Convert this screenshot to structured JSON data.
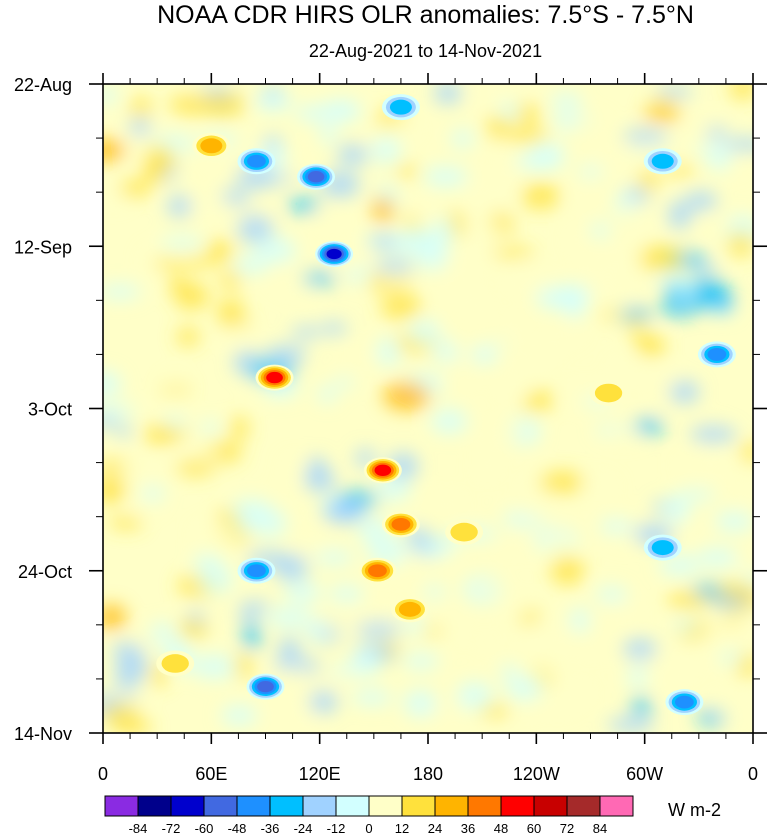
{
  "chart_data": {
    "type": "heatmap",
    "title": "NOAA CDR HIRS OLR anomalies: 7.5°S - 7.5°N",
    "subtitle": "22-Aug-2021 to 14-Nov-2021",
    "x_ticks": [
      "0",
      "60E",
      "120E",
      "180",
      "120W",
      "60W",
      "0"
    ],
    "x_tick_values_deg_east": [
      0,
      60,
      120,
      180,
      240,
      300,
      360
    ],
    "y_ticks": [
      "22-Aug",
      "12-Sep",
      "3-Oct",
      "24-Oct",
      "14-Nov"
    ],
    "y_range": [
      "22-Aug-2021",
      "14-Nov-2021"
    ],
    "colorbar": {
      "labels": [
        "-84",
        "-72",
        "-60",
        "-48",
        "-36",
        "-24",
        "-12",
        "0",
        "12",
        "24",
        "36",
        "48",
        "60",
        "72",
        "84"
      ],
      "colors": [
        "#8a2be2",
        "#00008b",
        "#0000cd",
        "#4169e1",
        "#1e90ff",
        "#00bfff",
        "#a0d2ff",
        "#d2ffff",
        "#ffffc8",
        "#ffe13c",
        "#ffb400",
        "#ff7800",
        "#ff0000",
        "#c80000",
        "#a52a2a",
        "#ff69b4"
      ],
      "units": "W m-2"
    },
    "features": [
      {
        "lon": 85,
        "day": 10,
        "value": -48
      },
      {
        "lon": 118,
        "day": 12,
        "value": -60
      },
      {
        "lon": 128,
        "day": 22,
        "value": -72
      },
      {
        "lon": 165,
        "day": 3,
        "value": -36
      },
      {
        "lon": 60,
        "day": 8,
        "value": 36
      },
      {
        "lon": 95,
        "day": 38,
        "value": 60
      },
      {
        "lon": 155,
        "day": 50,
        "value": 60
      },
      {
        "lon": 165,
        "day": 57,
        "value": 48
      },
      {
        "lon": 152,
        "day": 63,
        "value": 48
      },
      {
        "lon": 170,
        "day": 68,
        "value": 36
      },
      {
        "lon": 310,
        "day": 10,
        "value": -36
      },
      {
        "lon": 340,
        "day": 35,
        "value": -48
      },
      {
        "lon": 310,
        "day": 60,
        "value": -36
      },
      {
        "lon": 85,
        "day": 63,
        "value": -48
      },
      {
        "lon": 90,
        "day": 78,
        "value": -60
      },
      {
        "lon": 322,
        "day": 80,
        "value": -48
      },
      {
        "lon": 200,
        "day": 58,
        "value": 24
      },
      {
        "lon": 40,
        "day": 75,
        "value": 24
      },
      {
        "lon": 280,
        "day": 40,
        "value": 24
      }
    ]
  }
}
